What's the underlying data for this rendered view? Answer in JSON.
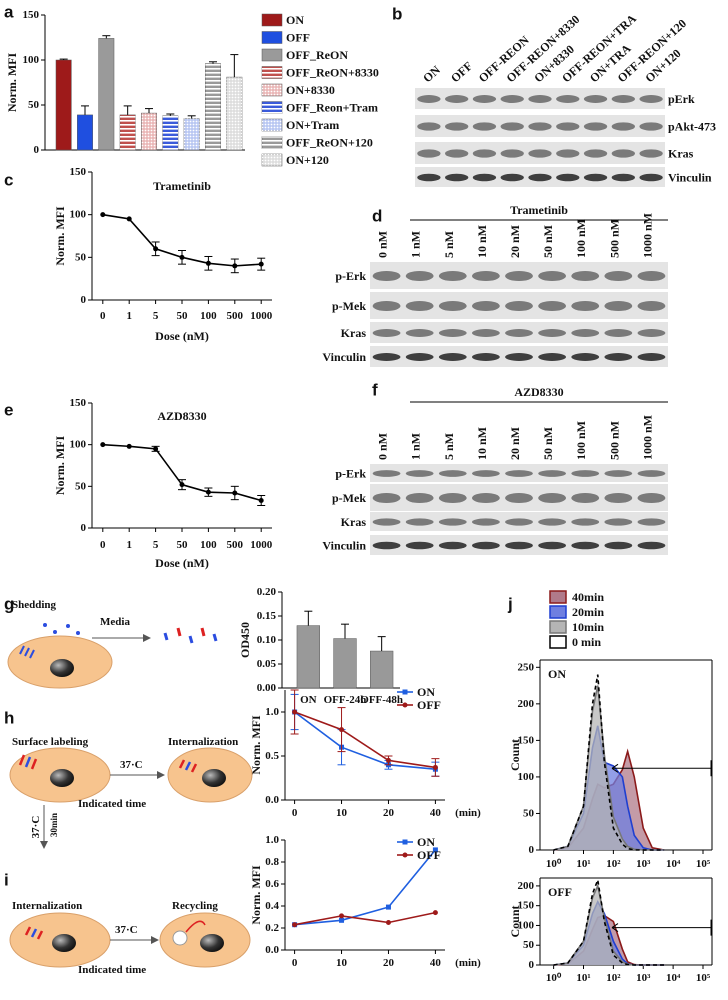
{
  "panel_labels": [
    "a",
    "b",
    "c",
    "d",
    "e",
    "f",
    "g",
    "h",
    "i",
    "j"
  ],
  "chart_data": [
    {
      "type": "bar",
      "ylabel": "Norm. MFI",
      "categories": [
        "ON",
        "OFF",
        "OFF_ReON",
        "OFF_ReON+8330",
        "ON+8330",
        "OFF_Reon+Tram",
        "ON+Tram",
        "OFF_ReON+120",
        "ON+120"
      ],
      "values": [
        100,
        39,
        124,
        39,
        41,
        38,
        35,
        96,
        81
      ],
      "errors": [
        1,
        10,
        3,
        10,
        5,
        2,
        3,
        2,
        25
      ],
      "colors": [
        "#9e1a1a",
        "#1f4fe0",
        "#9a9a9a",
        "#c0504d",
        "#e9b6b6",
        "#3b5bdb",
        "#b8c6f2",
        "#9a9a9a",
        "#dddddd"
      ],
      "patterns": [
        "solid",
        "solid",
        "solid",
        "hatch",
        "dots",
        "hatch",
        "dots",
        "hatch",
        "dots"
      ],
      "ylim": [
        0,
        150
      ],
      "yticks": [
        0,
        50,
        100,
        150
      ],
      "legend": true
    },
    {
      "type": "line",
      "title": "Trametinib",
      "xlabel": "Dose (nM)",
      "ylabel": "Norm. MFI",
      "categories": [
        "0",
        "1",
        "5",
        "50",
        "100",
        "500",
        "1000"
      ],
      "values": [
        100,
        95,
        60,
        50,
        43,
        40,
        42
      ],
      "errors": [
        0,
        0,
        8,
        8,
        8,
        8,
        7
      ],
      "color": "#000000",
      "ylim": [
        0,
        150
      ],
      "yticks": [
        0,
        50,
        100,
        150
      ]
    },
    {
      "type": "line",
      "title": "AZD8330",
      "xlabel": "Dose (nM)",
      "ylabel": "Norm. MFI",
      "categories": [
        "0",
        "1",
        "5",
        "50",
        "100",
        "500",
        "1000"
      ],
      "values": [
        100,
        98,
        95,
        52,
        43,
        42,
        33
      ],
      "errors": [
        0,
        0,
        3,
        6,
        5,
        8,
        6
      ],
      "color": "#000000",
      "ylim": [
        0,
        150
      ],
      "yticks": [
        0,
        50,
        100,
        150
      ]
    },
    {
      "type": "bar",
      "ylabel": "OD450",
      "categories": [
        "ON",
        "OFF-24h",
        "OFF-48h"
      ],
      "values": [
        0.13,
        0.103,
        0.077
      ],
      "errors": [
        0.03,
        0.03,
        0.03
      ],
      "colors": [
        "#999999",
        "#999999",
        "#999999"
      ],
      "ylim": [
        0,
        0.2
      ],
      "yticks": [
        {
          "value": 0,
          "label": "0.00"
        },
        {
          "value": 0.05,
          "label": "0.05"
        },
        {
          "value": 0.1,
          "label": "0.10"
        },
        {
          "value": 0.15,
          "label": "0.15"
        },
        {
          "value": 0.2,
          "label": "0.20"
        }
      ]
    },
    {
      "type": "line",
      "ylabel": "Norm. MFI",
      "xlabel": "(min)",
      "categories": [
        "0",
        "10",
        "20",
        "40"
      ],
      "series": [
        {
          "name": "ON",
          "color": "#1f5fe0",
          "marker": "square",
          "values": [
            1.0,
            0.6,
            0.4,
            0.35
          ],
          "errors": [
            0.2,
            0.2,
            0.05,
            0.08
          ]
        },
        {
          "name": "OFF",
          "color": "#9e1a1a",
          "marker": "circle",
          "values": [
            1.0,
            0.8,
            0.45,
            0.37
          ],
          "errors": [
            0.25,
            0.25,
            0.05,
            0.1
          ]
        }
      ],
      "ylim": [
        0,
        1.25
      ],
      "yticks": [
        {
          "value": 0,
          "label": "0.0"
        },
        {
          "value": 0.5,
          "label": "0.5"
        },
        {
          "value": 1,
          "label": "1.0"
        }
      ]
    },
    {
      "type": "line",
      "ylabel": "Norm. MFI",
      "xlabel": "(min)",
      "categories": [
        "0",
        "10",
        "20",
        "40"
      ],
      "series": [
        {
          "name": "ON",
          "color": "#1f5fe0",
          "marker": "square",
          "values": [
            0.23,
            0.27,
            0.39,
            0.91
          ]
        },
        {
          "name": "OFF",
          "color": "#9e1a1a",
          "marker": "circle",
          "values": [
            0.23,
            0.31,
            0.25,
            0.34
          ]
        }
      ],
      "ylim": [
        0,
        1
      ],
      "yticks": [
        {
          "value": 0,
          "label": "0.0"
        },
        {
          "value": 0.2,
          "label": "0.2"
        },
        {
          "value": 0.4,
          "label": "0.4"
        },
        {
          "value": 0.6,
          "label": "0.6"
        },
        {
          "value": 0.8,
          "label": "0.8"
        },
        {
          "value": 1,
          "label": "1.0"
        }
      ]
    },
    {
      "type": "area",
      "title": "ON",
      "ylabel": "Count",
      "log_x": true,
      "x": [
        1,
        3,
        10,
        20,
        30,
        50,
        100,
        200,
        300,
        500,
        1000,
        2000,
        5000
      ],
      "series": [
        {
          "name": "40min",
          "color": "#8b1a1a",
          "fill": "#b07a8a",
          "values": [
            0,
            3,
            30,
            70,
            90,
            85,
            90,
            110,
            135,
            100,
            30,
            3,
            0
          ]
        },
        {
          "name": "20min",
          "color": "#1f3fd0",
          "fill": "#6f7fe0",
          "values": [
            0,
            5,
            50,
            140,
            170,
            120,
            115,
            100,
            60,
            20,
            3,
            0,
            0
          ]
        },
        {
          "name": "10min",
          "color": "#777777",
          "fill": "#b5b5b5",
          "values": [
            0,
            5,
            60,
            190,
            225,
            130,
            45,
            15,
            5,
            1,
            0,
            0,
            0
          ]
        },
        {
          "name": "0 min",
          "color": "#000000",
          "fill": "none",
          "dash": true,
          "values": [
            0,
            5,
            60,
            200,
            240,
            120,
            30,
            8,
            2,
            0,
            0,
            0,
            0
          ]
        }
      ],
      "xlim": [
        0.35,
        200000
      ],
      "xticks": [
        {
          "value": 1,
          "label": "10⁰"
        },
        {
          "value": 10,
          "label": "10¹"
        },
        {
          "value": 100,
          "label": "10²"
        },
        {
          "value": 1000,
          "label": "10³"
        },
        {
          "value": 10000,
          "label": "10⁴"
        },
        {
          "value": 100000,
          "label": "10⁵"
        }
      ],
      "ylim": [
        0,
        260
      ],
      "yticks": [
        0,
        50,
        100,
        150,
        200,
        250
      ]
    },
    {
      "type": "area",
      "title": "OFF",
      "ylabel": "Count",
      "log_x": true,
      "x": [
        1,
        3,
        10,
        20,
        30,
        50,
        100,
        200,
        300,
        500,
        1000,
        2000,
        5000
      ],
      "series": [
        {
          "name": "40min",
          "color": "#8b1a1a",
          "fill": "#b07a8a",
          "values": [
            0,
            3,
            35,
            90,
            120,
            125,
            110,
            40,
            8,
            1,
            0,
            0,
            0
          ]
        },
        {
          "name": "20min",
          "color": "#1f3fd0",
          "fill": "#6f7fe0",
          "values": [
            0,
            5,
            50,
            130,
            160,
            130,
            60,
            15,
            3,
            0,
            0,
            0,
            0
          ]
        },
        {
          "name": "10min",
          "color": "#777777",
          "fill": "#b5b5b5",
          "values": [
            0,
            5,
            60,
            170,
            200,
            120,
            35,
            8,
            2,
            0,
            0,
            0,
            0
          ]
        },
        {
          "name": "0 min",
          "color": "#000000",
          "fill": "none",
          "dash": true,
          "values": [
            0,
            5,
            60,
            180,
            215,
            110,
            25,
            5,
            1,
            0,
            0,
            0,
            0
          ]
        }
      ],
      "xlim": [
        0.35,
        200000
      ],
      "xticks": [
        {
          "value": 1,
          "label": "10⁰"
        },
        {
          "value": 10,
          "label": "10¹"
        },
        {
          "value": 100,
          "label": "10²"
        },
        {
          "value": 1000,
          "label": "10³"
        },
        {
          "value": 10000,
          "label": "10⁴"
        },
        {
          "value": 100000,
          "label": "10⁵"
        }
      ],
      "ylim": [
        0,
        220
      ],
      "yticks": [
        0,
        50,
        100,
        150,
        200
      ]
    }
  ],
  "blots": [
    {
      "lanes": [
        "ON",
        "OFF",
        "OFF-REON",
        "OFF-REON+8330",
        "ON+8330",
        "OFF-REON+TRA",
        "ON+TRA",
        "OFF-REON+120",
        "ON+120"
      ],
      "rows": [
        "pErk",
        "pAkt-473",
        "Kras",
        "Vinculin"
      ]
    },
    {
      "title": "Trametinib",
      "lanes": [
        "0 nM",
        "1 nM",
        "5 nM",
        "10 nM",
        "20 nM",
        "50 nM",
        "100 nM",
        "500 nM",
        "1000 nM"
      ],
      "rows": [
        "p-Erk",
        "p-Mek",
        "Kras",
        "Vinculin"
      ]
    },
    {
      "title": "AZD8330",
      "lanes": [
        "0 nM",
        "1 nM",
        "5 nM",
        "10 nM",
        "20 nM",
        "50 nM",
        "100 nM",
        "500 nM",
        "1000 nM"
      ],
      "rows": [
        "p-Erk",
        "p-Mek",
        "Kras",
        "Vinculin"
      ]
    }
  ],
  "diagrams": {
    "g": {
      "shedding": "Shedding",
      "media": "Media"
    },
    "h": {
      "surface": "Surface labeling",
      "internalization": "Internalization",
      "temp": "37·C",
      "time": "Indicated time"
    },
    "transition": {
      "temp": "37·C",
      "time": "30min"
    },
    "i": {
      "internalization": "Internalization",
      "recycling": "Recycling",
      "temp": "37·C",
      "time": "Indicated time"
    }
  }
}
